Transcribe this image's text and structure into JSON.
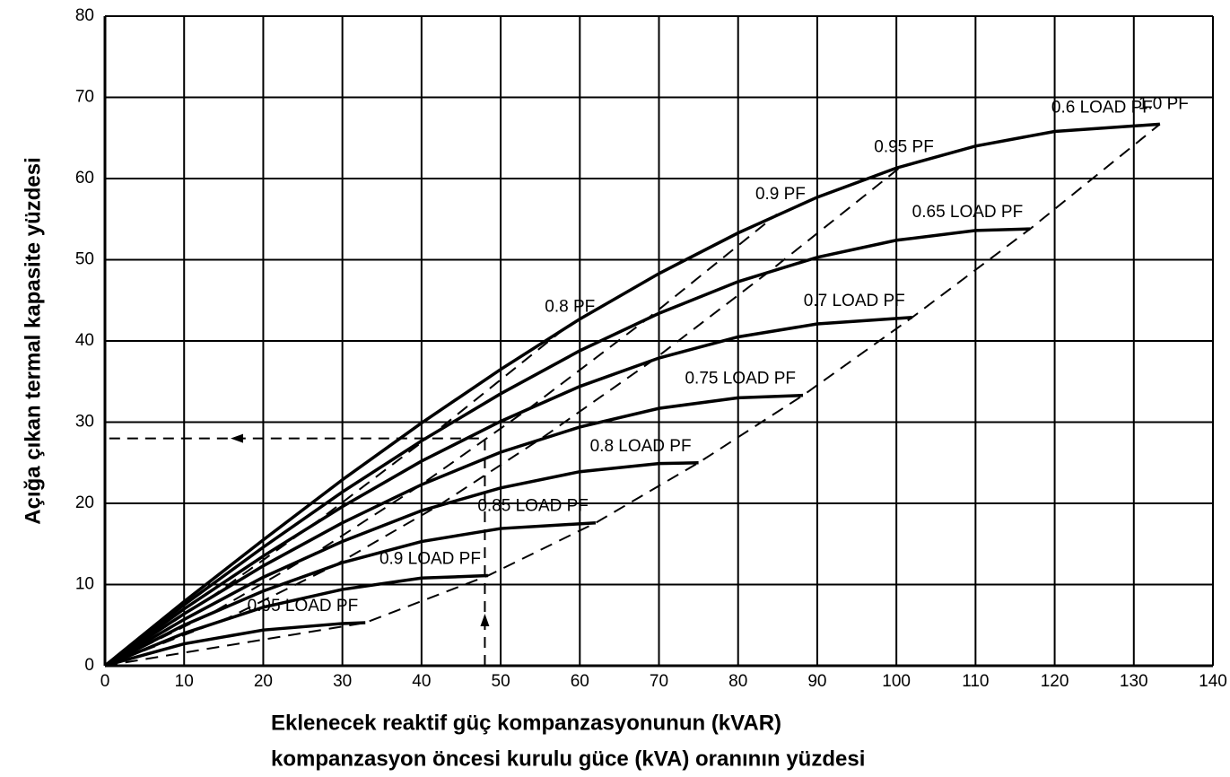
{
  "chart_data": {
    "type": "line",
    "ylabel": "Açığa çıkan termal kapasite yüzdesi",
    "xlabel": [
      "Eklenecek reaktif güç kompanzasyonunun (kVAR)",
      "kompanzasyon öncesi kurulu güce (kVA) oranının yüzdesi"
    ],
    "xlim": [
      0,
      140
    ],
    "xticks": [
      0,
      10,
      20,
      30,
      40,
      50,
      60,
      70,
      80,
      90,
      100,
      110,
      120,
      130,
      140
    ],
    "ylim": [
      0,
      80
    ],
    "yticks": [
      0,
      10,
      20,
      30,
      40,
      50,
      60,
      70,
      80
    ],
    "grid": true,
    "series": [
      {
        "name": "0.6 LOAD PF",
        "color": "#000000",
        "line_style": "solid",
        "x": [
          0,
          10,
          20,
          30,
          40,
          50,
          60,
          70,
          80,
          90,
          100,
          110,
          120,
          133.3
        ],
        "values": [
          0,
          7.9,
          15.5,
          22.9,
          29.9,
          36.5,
          42.7,
          48.3,
          53.3,
          57.7,
          61.3,
          64.0,
          65.8,
          66.7
        ]
      },
      {
        "name": "0.65 LOAD PF",
        "color": "#000000",
        "line_style": "solid",
        "x": [
          0,
          10,
          20,
          30,
          40,
          50,
          60,
          70,
          80,
          90,
          100,
          110,
          116.9
        ],
        "values": [
          0,
          7.5,
          14.6,
          21.4,
          27.7,
          33.5,
          38.8,
          43.4,
          47.3,
          50.3,
          52.4,
          53.6,
          53.8
        ]
      },
      {
        "name": "0.7 LOAD PF",
        "color": "#000000",
        "line_style": "solid",
        "x": [
          0,
          10,
          20,
          30,
          40,
          50,
          60,
          70,
          80,
          90,
          102
        ],
        "values": [
          0,
          7.0,
          13.5,
          19.6,
          25.2,
          30.1,
          34.4,
          37.9,
          40.5,
          42.1,
          42.9
        ]
      },
      {
        "name": "0.75 LOAD PF",
        "color": "#000000",
        "line_style": "solid",
        "x": [
          0,
          10,
          20,
          30,
          40,
          50,
          60,
          70,
          80,
          88.2
        ],
        "values": [
          0,
          6.4,
          12.3,
          17.6,
          22.3,
          26.3,
          29.4,
          31.7,
          33.0,
          33.3
        ]
      },
      {
        "name": "0.8 LOAD PF",
        "color": "#000000",
        "line_style": "solid",
        "x": [
          0,
          10,
          20,
          30,
          40,
          50,
          60,
          70,
          75
        ],
        "values": [
          0,
          5.7,
          10.9,
          15.3,
          19.1,
          21.9,
          23.9,
          24.9,
          25.0
        ]
      },
      {
        "name": "0.85 LOAD PF",
        "color": "#000000",
        "line_style": "solid",
        "x": [
          0,
          10,
          20,
          30,
          40,
          50,
          62
        ],
        "values": [
          0,
          5.0,
          9.2,
          12.7,
          15.3,
          16.9,
          17.6
        ]
      },
      {
        "name": "0.9 LOAD PF",
        "color": "#000000",
        "line_style": "solid",
        "x": [
          0,
          10,
          20,
          30,
          40,
          48.4
        ],
        "values": [
          0,
          4.0,
          7.2,
          9.4,
          10.8,
          11.1
        ]
      },
      {
        "name": "0.95 LOAD PF",
        "color": "#000000",
        "line_style": "solid",
        "x": [
          0,
          10,
          20,
          30,
          32.9
        ],
        "values": [
          0,
          2.7,
          4.4,
          5.2,
          5.3
        ]
      },
      {
        "name": "1.0 PF",
        "color": "#000000",
        "line_style": "dashed",
        "x": [
          0,
          32.9,
          48.4,
          62,
          75,
          88.2,
          102,
          116.9,
          133.3
        ],
        "values": [
          0,
          5.3,
          11.1,
          17.6,
          25.0,
          33.3,
          42.9,
          53.8,
          66.7
        ]
      },
      {
        "name": "0.95 PF",
        "color": "#000000",
        "line_style": "dashed",
        "x": [
          0,
          15.6,
          29.1,
          42.1,
          55.3,
          69.2,
          84.0,
          100.5
        ],
        "values": [
          0,
          5.9,
          12.4,
          19.7,
          28.1,
          37.6,
          48.6,
          61.4
        ]
      },
      {
        "name": "0.9 PF",
        "color": "#000000",
        "line_style": "dashed",
        "x": [
          0,
          13.5,
          26.6,
          39.8,
          53.6,
          68.5,
          84.9
        ],
        "values": [
          0,
          6.5,
          13.9,
          22.2,
          31.7,
          42.7,
          55.6
        ]
      },
      {
        "name": "0.8 PF",
        "color": "#000000",
        "line_style": "dashed",
        "x": [
          0,
          13.2,
          27.0,
          41.9,
          58.3
        ],
        "values": [
          0,
          8.3,
          17.9,
          28.9,
          41.7
        ]
      }
    ],
    "guide": {
      "x": 48,
      "y": 28
    }
  }
}
